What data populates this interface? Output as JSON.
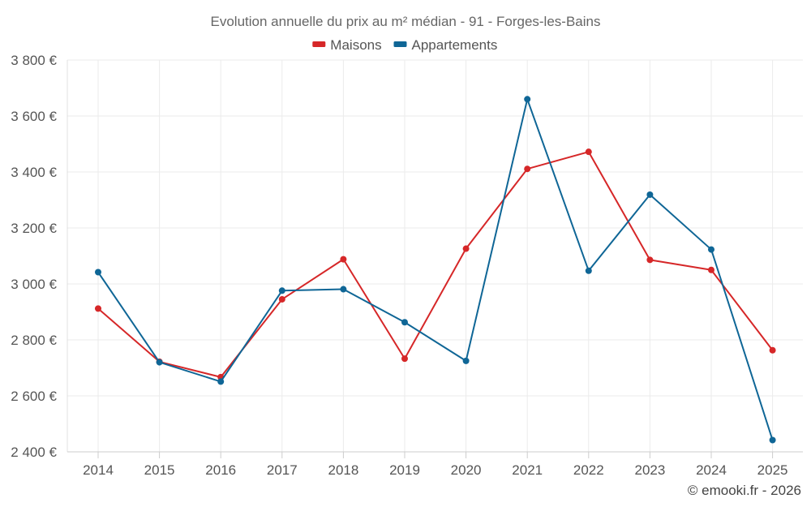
{
  "chart_data": {
    "type": "line",
    "title": "Evolution annuelle du prix au m² médian - 91 - Forges-les-Bains",
    "categories": [
      "2014",
      "2015",
      "2016",
      "2017",
      "2018",
      "2019",
      "2020",
      "2021",
      "2022",
      "2023",
      "2024",
      "2025"
    ],
    "series": [
      {
        "name": "Maisons",
        "color": "#d62728",
        "values": [
          2912,
          2722,
          2667,
          2945,
          3088,
          2733,
          3126,
          3411,
          3472,
          3086,
          3050,
          2763
        ]
      },
      {
        "name": "Appartements",
        "color": "#0f6696",
        "values": [
          3042,
          2720,
          2651,
          2976,
          2981,
          2863,
          2725,
          3660,
          3047,
          3319,
          3123,
          2442
        ]
      }
    ],
    "xlabel": "",
    "ylabel": "",
    "ylim": [
      2400,
      3800
    ],
    "y_ticks": [
      3800,
      3600,
      3400,
      3200,
      3000,
      2800,
      2600,
      2400
    ],
    "y_tick_labels": [
      "3 800 €",
      "3 600 €",
      "3 400 €",
      "3 200 €",
      "3 000 €",
      "2 800 €",
      "2 600 €",
      "2 400 €"
    ],
    "grid": true,
    "legend_position": "top-center"
  },
  "credit": "© emooki.fr - 2026"
}
